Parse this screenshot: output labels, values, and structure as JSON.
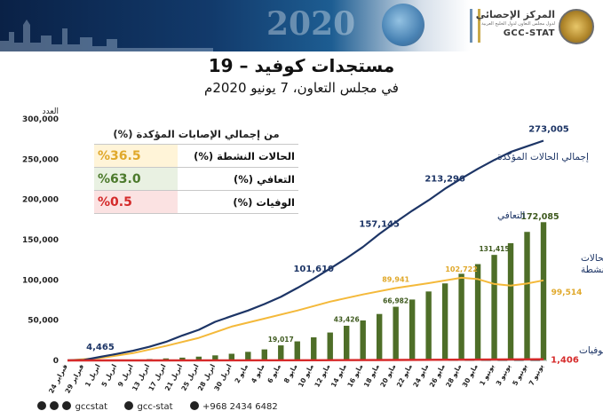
{
  "header": {
    "logo_ar": "المركز الإحصائي",
    "logo_sub": "لدول مجلس التعاون لدول الخليج العربية",
    "logo_en": "GCC-STAT",
    "banner_year": "2020"
  },
  "title": "مستجدات كوفيد – 19",
  "subtitle": "في مجلس التعاون، 7 يونيو 2020م",
  "table": {
    "header": "من إجمالي الإصابات المؤكدة (%)",
    "rows": [
      {
        "label": "الحالات النشطة (%)",
        "value": "%36.5",
        "color": "#e0a82a"
      },
      {
        "label": "التعافي (%)",
        "value": "%63.0",
        "color": "#4c7a2c"
      },
      {
        "label": "الوفيات (%)",
        "value": "%0.5",
        "color": "#d42a2a"
      }
    ]
  },
  "footer": {
    "handle1": "gccstat",
    "handle2": "gcc-stat",
    "phone": "+968 2434 6482"
  },
  "chart_data": {
    "type": "line",
    "ylabel": "العدد",
    "ylim": [
      0,
      300000
    ],
    "yticks": [
      "0",
      "50,000",
      "100,000",
      "150,000",
      "200,000",
      "250,000",
      "300,000"
    ],
    "x_tick_labels": [
      "24 فبراير",
      "29 فبراير",
      "1 ابريل",
      "5 ابريل",
      "9 ابريل",
      "13 ابريل",
      "17 ابريل",
      "21 ابريل",
      "25 ابريل",
      "28 ابريل",
      "30 ابريل",
      "2 مايو",
      "4 مايو",
      "6 مايو",
      "8 مايو",
      "10 مايو",
      "12 مايو",
      "14 مايو",
      "16 مايو",
      "18 مايو",
      "20 مايو",
      "22 مايو",
      "24 مايو",
      "26 مايو",
      "28 مايو",
      "30 مايو",
      "1 يونيو",
      "3 يونيو",
      "5 يونيو",
      "7 يونيو"
    ],
    "colors": {
      "total": "#1d3566",
      "active": "#f4b93a",
      "recovered": "#4e6e28",
      "deaths": "#d62a2a"
    },
    "series": [
      {
        "name": "إجمالي الحالات المؤكدة",
        "style": "line",
        "x": [
          0,
          2,
          4,
          6,
          8,
          10,
          12,
          14,
          16,
          18,
          20,
          22,
          24,
          26,
          28,
          30,
          32,
          34,
          36,
          38,
          40,
          42,
          44,
          46,
          48,
          50,
          52,
          54,
          56,
          58
        ],
        "values": [
          0,
          500,
          4465,
          8000,
          12000,
          17000,
          23000,
          31000,
          38000,
          48000,
          55000,
          62000,
          70000,
          79000,
          90000,
          101610,
          114000,
          127000,
          141000,
          157145,
          172000,
          186000,
          199000,
          213296,
          226000,
          238000,
          249000,
          259000,
          266000,
          273005
        ]
      },
      {
        "name": "الحالات النشطة",
        "style": "line",
        "x": [
          0,
          4,
          8,
          12,
          16,
          20,
          24,
          28,
          32,
          36,
          40,
          44,
          48,
          50,
          52,
          54,
          56,
          58
        ],
        "values": [
          0,
          3000,
          9000,
          18000,
          28000,
          42000,
          52000,
          62000,
          73000,
          82000,
          89941,
          96000,
          102722,
          101000,
          95000,
          93000,
          95500,
          99514
        ]
      },
      {
        "name": "التعافي",
        "style": "bar",
        "x": [
          2,
          4,
          6,
          8,
          10,
          12,
          14,
          16,
          18,
          20,
          22,
          24,
          26,
          28,
          30,
          32,
          34,
          36,
          38,
          40,
          42,
          44,
          46,
          48,
          50,
          52,
          54,
          56,
          58
        ],
        "values": [
          300,
          500,
          900,
          1400,
          2000,
          2800,
          3800,
          5000,
          6600,
          8600,
          11000,
          14000,
          19017,
          24000,
          29000,
          35000,
          43426,
          50000,
          58000,
          66982,
          76000,
          86000,
          96000,
          108000,
          120000,
          131415,
          146000,
          160000,
          172085
        ]
      },
      {
        "name": "الوفيات",
        "style": "line",
        "x": [
          0,
          10,
          20,
          30,
          40,
          50,
          58
        ],
        "values": [
          0,
          20,
          60,
          200,
          500,
          1000,
          1406
        ]
      }
    ],
    "data_labels": [
      {
        "series": "إجمالي الحالات المؤكدة",
        "x": 4,
        "value": "4,465"
      },
      {
        "series": "إجمالي الحالات المؤكدة",
        "x": 30,
        "value": "101,610"
      },
      {
        "series": "إجمالي الحالات المؤكدة",
        "x": 38,
        "value": "157,145"
      },
      {
        "series": "إجمالي الحالات المؤكدة",
        "x": 46,
        "value": "213,296"
      },
      {
        "series": "إجمالي الحالات المؤكدة",
        "x": 58,
        "value": "273,005"
      },
      {
        "series": "الحالات النشطة",
        "x": 40,
        "value": "89,941"
      },
      {
        "series": "الحالات النشطة",
        "x": 48,
        "value": "102,722"
      },
      {
        "series": "الحالات النشطة",
        "x": 58,
        "value": "99,514"
      },
      {
        "series": "التعافي",
        "x": 26,
        "value": "19,017"
      },
      {
        "series": "التعافي",
        "x": 34,
        "value": "43,426"
      },
      {
        "series": "التعافي",
        "x": 40,
        "value": "66,982"
      },
      {
        "series": "التعافي",
        "x": 52,
        "value": "131,415"
      },
      {
        "series": "التعافي",
        "x": 58,
        "value": "172,085"
      },
      {
        "series": "الوفيات",
        "x": 58,
        "value": "1,406"
      }
    ],
    "series_labels": {
      "total": "إجمالي الحالات المؤكدة",
      "recovered": "التعافي",
      "active": "الحالات النشطة",
      "deaths": "الوفيات"
    }
  }
}
